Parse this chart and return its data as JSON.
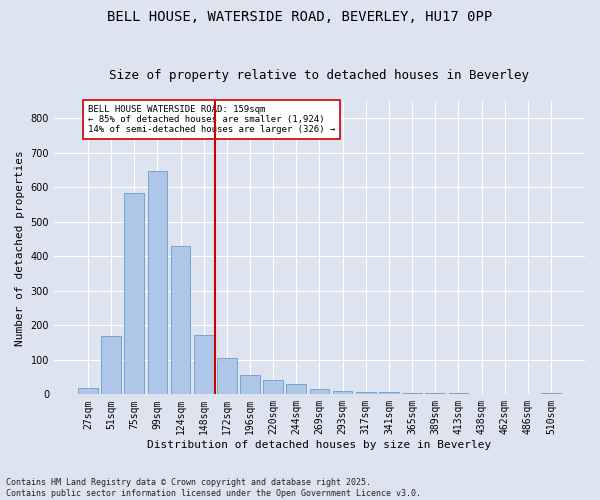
{
  "title_line1": "BELL HOUSE, WATERSIDE ROAD, BEVERLEY, HU17 0PP",
  "title_line2": "Size of property relative to detached houses in Beverley",
  "xlabel": "Distribution of detached houses by size in Beverley",
  "ylabel": "Number of detached properties",
  "categories": [
    "27sqm",
    "51sqm",
    "75sqm",
    "99sqm",
    "124sqm",
    "148sqm",
    "172sqm",
    "196sqm",
    "220sqm",
    "244sqm",
    "269sqm",
    "293sqm",
    "317sqm",
    "341sqm",
    "365sqm",
    "389sqm",
    "413sqm",
    "438sqm",
    "462sqm",
    "486sqm",
    "510sqm"
  ],
  "values": [
    18,
    168,
    585,
    648,
    430,
    172,
    105,
    57,
    42,
    30,
    15,
    10,
    8,
    7,
    5,
    3,
    5,
    0,
    0,
    0,
    5
  ],
  "bar_color": "#aec6e8",
  "bar_edge_color": "#5a8fc2",
  "vline_x": 5.5,
  "vline_color": "#cc0000",
  "annotation_text": "BELL HOUSE WATERSIDE ROAD: 159sqm\n← 85% of detached houses are smaller (1,924)\n14% of semi-detached houses are larger (326) →",
  "annotation_box_color": "#ffffff",
  "annotation_box_edge": "#cc0000",
  "ylim": [
    0,
    850
  ],
  "yticks": [
    0,
    100,
    200,
    300,
    400,
    500,
    600,
    700,
    800
  ],
  "footnote": "Contains HM Land Registry data © Crown copyright and database right 2025.\nContains public sector information licensed under the Open Government Licence v3.0.",
  "background_color": "#dde4f0",
  "plot_background": "#dde4f0",
  "grid_color": "#ffffff",
  "title_fontsize": 10,
  "subtitle_fontsize": 9,
  "axis_label_fontsize": 8,
  "tick_fontsize": 7,
  "annotation_fontsize": 6.5,
  "footnote_fontsize": 6
}
